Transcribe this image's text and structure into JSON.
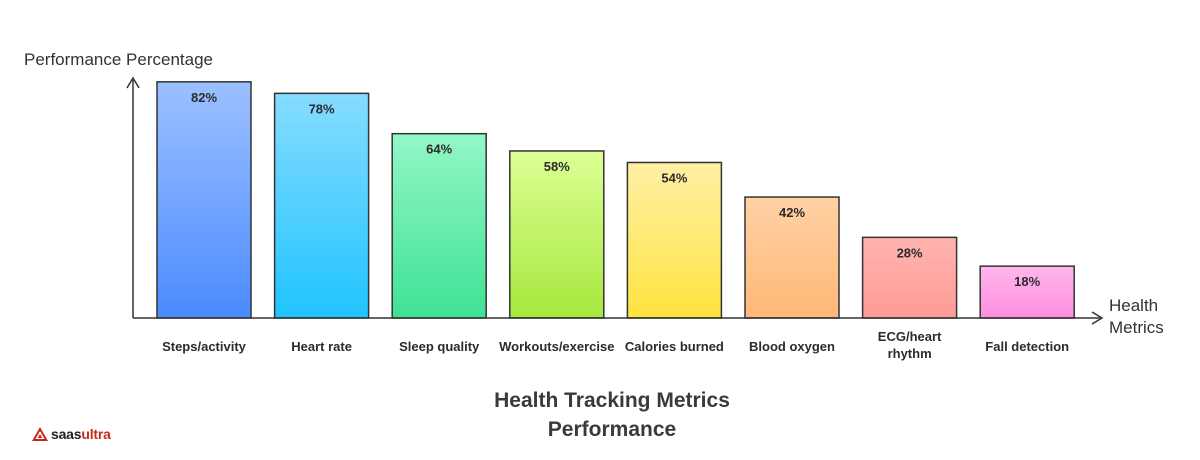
{
  "chart_data": {
    "type": "bar",
    "title_lines": [
      "Health Tracking Metrics",
      "Performance"
    ],
    "ylabel": "Performance Percentage",
    "xlabel_lines": [
      "Health",
      "Metrics"
    ],
    "ylim": [
      0,
      100
    ],
    "categories": [
      {
        "lines": [
          "Steps/activity"
        ]
      },
      {
        "lines": [
          "Heart rate"
        ]
      },
      {
        "lines": [
          "Sleep quality"
        ]
      },
      {
        "lines": [
          "Workouts/exercise"
        ]
      },
      {
        "lines": [
          "Calories burned"
        ]
      },
      {
        "lines": [
          "Blood oxygen"
        ]
      },
      {
        "lines": [
          "ECG/heart",
          "rhythm"
        ]
      },
      {
        "lines": [
          "Fall detection"
        ]
      }
    ],
    "values": [
      82,
      78,
      64,
      58,
      54,
      42,
      28,
      18
    ],
    "value_labels": [
      "82%",
      "78%",
      "64%",
      "58%",
      "54%",
      "42%",
      "28%",
      "18%"
    ],
    "colors": [
      [
        "#9cc0ff",
        "#4b8bff"
      ],
      [
        "#86dcff",
        "#1fc4ff"
      ],
      [
        "#93f7c7",
        "#3fe195"
      ],
      [
        "#dcff94",
        "#a6e83d"
      ],
      [
        "#fff0a6",
        "#ffe33f"
      ],
      [
        "#ffd1a4",
        "#ffb877"
      ],
      [
        "#ffb4b0",
        "#ff9b95"
      ],
      [
        "#ffb6ec",
        "#ff8ee0"
      ]
    ],
    "grid": false,
    "legend": "none"
  },
  "brand": {
    "saas": "saas",
    "ultra": "ultra"
  },
  "colors": {
    "axis": "#333333",
    "bar_stroke": "#333333",
    "text": "#2b2b2b",
    "brand_red": "#c62a1e"
  }
}
